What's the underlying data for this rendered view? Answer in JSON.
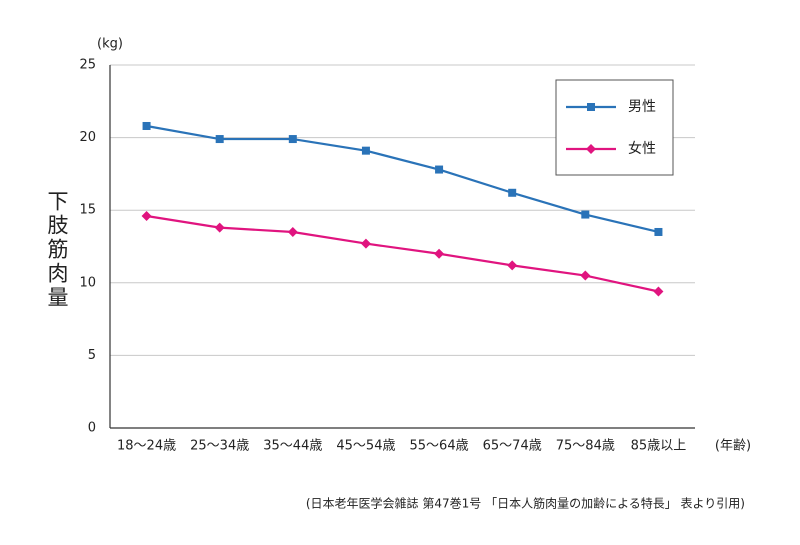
{
  "chart_data": {
    "type": "line",
    "y_unit": "(kg)",
    "ylabel": "下肢筋肉量",
    "x_unit": "(年齢)",
    "source": "(日本老年医学会雑誌 第47巻1号 「日本人筋肉量の加齢による特長」 表より引用)",
    "categories": [
      "18～24歳",
      "25～34歳",
      "35～44歳",
      "45～54歳",
      "55～64歳",
      "65～74歳",
      "75～84歳",
      "85歳以上"
    ],
    "series": [
      {
        "name": "男性",
        "color": "#2a73b8",
        "marker": "square",
        "values": [
          20.8,
          19.9,
          19.9,
          19.1,
          17.8,
          16.2,
          14.7,
          13.5
        ]
      },
      {
        "name": "女性",
        "color": "#e0147f",
        "marker": "diamond",
        "values": [
          14.6,
          13.8,
          13.5,
          12.7,
          12.0,
          11.2,
          10.5,
          9.4
        ]
      }
    ],
    "ylim": [
      0,
      25
    ],
    "yticks": [
      0,
      5,
      10,
      15,
      20,
      25
    ],
    "grid": true,
    "legend": "upper-right"
  }
}
